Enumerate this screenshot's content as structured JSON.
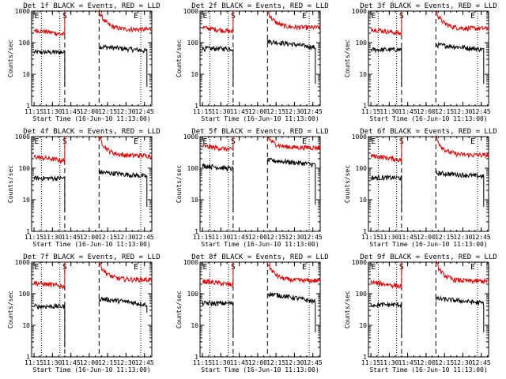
{
  "page": {
    "title_suffix": "BLACK = Events, RED = LLD",
    "xlabel": "Start Time (16-Jun-10 11:13:00)",
    "ylabel": "Counts/sec",
    "event_markers": [
      "E",
      "S",
      "E"
    ]
  },
  "colors": {
    "events": "#000000",
    "lld": "#e00000",
    "axes": "#000000"
  },
  "chart_data": [
    {
      "type": "line",
      "title": "Det 1f BLACK = Events, RED = LLD",
      "xlabel": "Start Time (16-Jun-10 11:13:00)",
      "ylabel": "Counts/sec",
      "y_scale": "log",
      "xlim": [
        "11:13",
        "12:51"
      ],
      "ylim": [
        1,
        1000
      ],
      "x_ticks": [
        "11:15",
        "11:30",
        "11:45",
        "12:00",
        "12:15",
        "12:30",
        "12:45"
      ],
      "y_ticks": [
        "1",
        "10",
        "100",
        "1000"
      ],
      "vlines_dotted": [
        "11:21",
        "11:36",
        "12:42"
      ],
      "vlines_dashed": [
        "11:40",
        "12:08"
      ],
      "series": [
        {
          "name": "Events",
          "color": "#000000",
          "segments": [
            {
              "start": "11:15",
              "end": "11:40",
              "level": 50,
              "drop_end": 4
            },
            {
              "start": "12:08",
              "end": "12:47",
              "level": 75,
              "decay_to": 55,
              "drop_end": 4
            }
          ]
        },
        {
          "name": "LLD",
          "color": "#e00000",
          "segments": [
            {
              "start": "11:15",
              "end": "11:40",
              "level": 250,
              "decay_to": 180,
              "spike_end": 1000
            },
            {
              "start": "12:08",
              "end": "12:51",
              "level": 1000,
              "decay_to": 260
            }
          ]
        }
      ]
    },
    {
      "type": "line",
      "title": "Det 2f BLACK = Events, RED = LLD",
      "xlabel": "Start Time (16-Jun-10 11:13:00)",
      "ylabel": "Counts/sec",
      "y_scale": "log",
      "xlim": [
        "11:13",
        "12:51"
      ],
      "ylim": [
        1,
        1000
      ],
      "x_ticks": [
        "11:15",
        "11:30",
        "11:45",
        "12:00",
        "12:15",
        "12:30",
        "12:45"
      ],
      "y_ticks": [
        "1",
        "10",
        "100",
        "1000"
      ],
      "vlines_dotted": [
        "11:21",
        "11:36",
        "12:42"
      ],
      "vlines_dashed": [
        "11:40",
        "12:08"
      ],
      "series": [
        {
          "name": "Events",
          "color": "#000000",
          "segments": [
            {
              "start": "11:15",
              "end": "11:40",
              "level": 65,
              "drop_end": 4
            },
            {
              "start": "12:08",
              "end": "12:47",
              "level": 110,
              "decay_to": 70,
              "drop_end": 5
            }
          ]
        },
        {
          "name": "LLD",
          "color": "#e00000",
          "segments": [
            {
              "start": "11:15",
              "end": "11:40",
              "level": 300,
              "decay_to": 220,
              "spike_end": 1000
            },
            {
              "start": "12:08",
              "end": "12:51",
              "level": 1000,
              "decay_to": 300
            }
          ]
        }
      ]
    },
    {
      "type": "line",
      "title": "Det 3f BLACK = Events, RED = LLD",
      "xlabel": "Start Time (16-Jun-10 11:13:00)",
      "ylabel": "Counts/sec",
      "y_scale": "log",
      "xlim": [
        "11:13",
        "12:51"
      ],
      "ylim": [
        1,
        1000
      ],
      "x_ticks": [
        "11:15",
        "11:30",
        "11:45",
        "12:00",
        "12:15",
        "12:30",
        "12:45"
      ],
      "y_ticks": [
        "1",
        "10",
        "100",
        "1000"
      ],
      "vlines_dotted": [
        "11:21",
        "11:36",
        "12:42"
      ],
      "vlines_dashed": [
        "11:40",
        "12:08"
      ],
      "series": [
        {
          "name": "Events",
          "color": "#000000",
          "segments": [
            {
              "start": "11:15",
              "end": "11:40",
              "level": 60,
              "drop_end": 4
            },
            {
              "start": "12:08",
              "end": "12:47",
              "level": 85,
              "decay_to": 60,
              "drop_end": 5
            }
          ]
        },
        {
          "name": "LLD",
          "color": "#e00000",
          "segments": [
            {
              "start": "11:15",
              "end": "11:40",
              "level": 270,
              "decay_to": 190,
              "spike_end": 1000
            },
            {
              "start": "12:08",
              "end": "12:51",
              "level": 1000,
              "decay_to": 280
            }
          ]
        }
      ]
    },
    {
      "type": "line",
      "title": "Det 4f BLACK = Events, RED = LLD",
      "xlabel": "Start Time (16-Jun-10 11:13:00)",
      "ylabel": "Counts/sec",
      "y_scale": "log",
      "xlim": [
        "11:13",
        "12:51"
      ],
      "ylim": [
        1,
        1000
      ],
      "x_ticks": [
        "11:15",
        "11:30",
        "11:45",
        "12:00",
        "12:15",
        "12:30",
        "12:45"
      ],
      "y_ticks": [
        "1",
        "10",
        "100",
        "1000"
      ],
      "vlines_dotted": [
        "11:21",
        "11:36",
        "12:42"
      ],
      "vlines_dashed": [
        "11:40",
        "12:08"
      ],
      "series": [
        {
          "name": "Events",
          "color": "#000000",
          "segments": [
            {
              "start": "11:15",
              "end": "11:40",
              "level": 48,
              "drop_end": 4
            },
            {
              "start": "12:08",
              "end": "12:47",
              "level": 75,
              "decay_to": 55,
              "drop_end": 6
            }
          ]
        },
        {
          "name": "LLD",
          "color": "#e00000",
          "segments": [
            {
              "start": "11:15",
              "end": "11:40",
              "level": 230,
              "decay_to": 170,
              "spike_end": 1000
            },
            {
              "start": "12:08",
              "end": "12:51",
              "level": 1000,
              "decay_to": 250
            }
          ]
        }
      ]
    },
    {
      "type": "line",
      "title": "Det 5f BLACK = Events, RED = LLD",
      "xlabel": "Start Time (16-Jun-10 11:13:00)",
      "ylabel": "Counts/sec",
      "y_scale": "log",
      "xlim": [
        "11:13",
        "12:51"
      ],
      "ylim": [
        1,
        1000
      ],
      "x_ticks": [
        "11:15",
        "11:30",
        "11:45",
        "12:00",
        "12:15",
        "12:30",
        "12:45"
      ],
      "y_ticks": [
        "1",
        "10",
        "100",
        "1000"
      ],
      "vlines_dotted": [
        "11:21",
        "11:36",
        "12:42"
      ],
      "vlines_dashed": [
        "11:40",
        "12:08"
      ],
      "series": [
        {
          "name": "Events",
          "color": "#000000",
          "segments": [
            {
              "start": "11:15",
              "end": "11:40",
              "level": 120,
              "decay_to": 95,
              "drop_end": 4
            },
            {
              "start": "12:08",
              "end": "12:47",
              "level": 180,
              "decay_to": 130,
              "drop_end": 7
            }
          ]
        },
        {
          "name": "LLD",
          "color": "#e00000",
          "segments": [
            {
              "start": "11:15",
              "end": "11:40",
              "level": 500,
              "decay_to": 380,
              "spike_end": 1000
            },
            {
              "start": "12:08",
              "end": "12:51",
              "level": 1000,
              "decay_to": 450
            }
          ]
        }
      ]
    },
    {
      "type": "line",
      "title": "Det 6f BLACK = Events, RED = LLD",
      "xlabel": "Start Time (16-Jun-10 11:13:00)",
      "ylabel": "Counts/sec",
      "y_scale": "log",
      "xlim": [
        "11:13",
        "12:51"
      ],
      "ylim": [
        1,
        1000
      ],
      "x_ticks": [
        "11:15",
        "11:30",
        "11:45",
        "12:00",
        "12:15",
        "12:30",
        "12:45"
      ],
      "y_ticks": [
        "1",
        "10",
        "100",
        "1000"
      ],
      "vlines_dotted": [
        "11:21",
        "11:36",
        "12:42"
      ],
      "vlines_dashed": [
        "11:40",
        "12:08"
      ],
      "series": [
        {
          "name": "Events",
          "color": "#000000",
          "segments": [
            {
              "start": "11:15",
              "end": "11:40",
              "level": 50,
              "drop_end": 4
            },
            {
              "start": "12:08",
              "end": "12:47",
              "level": 70,
              "decay_to": 55,
              "drop_end": 6
            }
          ]
        },
        {
          "name": "LLD",
          "color": "#e00000",
          "segments": [
            {
              "start": "11:15",
              "end": "11:40",
              "level": 250,
              "decay_to": 180,
              "spike_end": 1000
            },
            {
              "start": "12:08",
              "end": "12:51",
              "level": 1000,
              "decay_to": 260
            }
          ]
        }
      ]
    },
    {
      "type": "line",
      "title": "Det 7f BLACK = Events, RED = LLD",
      "xlabel": "Start Time (16-Jun-10 11:13:00)",
      "ylabel": "Counts/sec",
      "y_scale": "log",
      "xlim": [
        "11:13",
        "12:51"
      ],
      "ylim": [
        1,
        1000
      ],
      "x_ticks": [
        "11:15",
        "11:30",
        "11:45",
        "12:00",
        "12:15",
        "12:30",
        "12:45"
      ],
      "y_ticks": [
        "1",
        "10",
        "100",
        "1000"
      ],
      "vlines_dotted": [
        "11:21",
        "11:36",
        "12:42"
      ],
      "vlines_dashed": [
        "11:40",
        "12:08"
      ],
      "series": [
        {
          "name": "Events",
          "color": "#000000",
          "segments": [
            {
              "start": "11:15",
              "end": "11:40",
              "level": 40,
              "drop_end": 2
            },
            {
              "start": "12:08",
              "end": "12:47",
              "level": 70,
              "decay_to": 45,
              "drop_end": 25
            }
          ]
        },
        {
          "name": "LLD",
          "color": "#e00000",
          "segments": [
            {
              "start": "11:15",
              "end": "11:40",
              "level": 220,
              "decay_to": 170,
              "spike_end": 1000
            },
            {
              "start": "12:08",
              "end": "12:51",
              "level": 1000,
              "decay_to": 280
            }
          ]
        }
      ]
    },
    {
      "type": "line",
      "title": "Det 8f BLACK = Events, RED = LLD",
      "xlabel": "Start Time (16-Jun-10 11:13:00)",
      "ylabel": "Counts/sec",
      "y_scale": "log",
      "xlim": [
        "11:13",
        "12:51"
      ],
      "ylim": [
        1,
        1000
      ],
      "x_ticks": [
        "11:15",
        "11:30",
        "11:45",
        "12:00",
        "12:15",
        "12:30",
        "12:45"
      ],
      "y_ticks": [
        "1",
        "10",
        "100",
        "1000"
      ],
      "vlines_dotted": [
        "11:21",
        "11:36",
        "12:42"
      ],
      "vlines_dashed": [
        "11:40",
        "12:08"
      ],
      "series": [
        {
          "name": "Events",
          "color": "#000000",
          "segments": [
            {
              "start": "11:15",
              "end": "11:40",
              "level": 50,
              "drop_end": 4
            },
            {
              "start": "12:08",
              "end": "12:47",
              "level": 100,
              "decay_to": 55,
              "drop_end": 6
            }
          ]
        },
        {
          "name": "LLD",
          "color": "#e00000",
          "segments": [
            {
              "start": "11:15",
              "end": "11:40",
              "level": 250,
              "decay_to": 190,
              "spike_end": 1000
            },
            {
              "start": "12:08",
              "end": "12:51",
              "level": 1000,
              "decay_to": 260
            }
          ]
        }
      ]
    },
    {
      "type": "line",
      "title": "Det 9f BLACK = Events, RED = LLD",
      "xlabel": "Start Time (16-Jun-10 11:13:00)",
      "ylabel": "Counts/sec",
      "y_scale": "log",
      "xlim": [
        "11:13",
        "12:51"
      ],
      "ylim": [
        1,
        1000
      ],
      "x_ticks": [
        "11:15",
        "11:30",
        "11:45",
        "12:00",
        "12:15",
        "12:30",
        "12:45"
      ],
      "y_ticks": [
        "1",
        "10",
        "100",
        "1000"
      ],
      "vlines_dotted": [
        "11:21",
        "11:36",
        "12:42"
      ],
      "vlines_dashed": [
        "11:40",
        "12:08"
      ],
      "series": [
        {
          "name": "Events",
          "color": "#000000",
          "segments": [
            {
              "start": "11:15",
              "end": "11:40",
              "level": 45,
              "drop_end": 4
            },
            {
              "start": "12:08",
              "end": "12:47",
              "level": 70,
              "decay_to": 50,
              "drop_end": 6
            }
          ]
        },
        {
          "name": "LLD",
          "color": "#e00000",
          "segments": [
            {
              "start": "11:15",
              "end": "11:40",
              "level": 230,
              "decay_to": 170,
              "spike_end": 1000
            },
            {
              "start": "12:08",
              "end": "12:51",
              "level": 1000,
              "decay_to": 250
            }
          ]
        }
      ]
    }
  ]
}
